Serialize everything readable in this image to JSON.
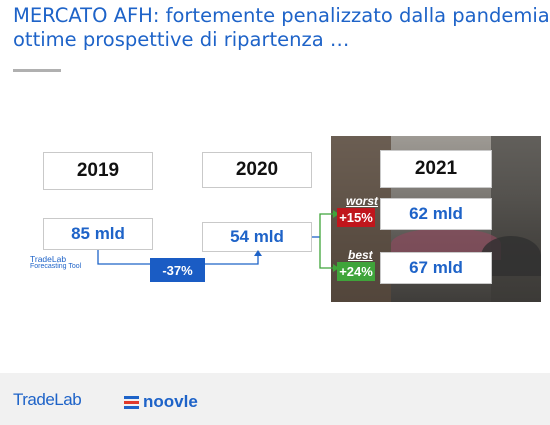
{
  "header": {
    "title_line1": "MERCATO AFH: fortemente penalizzato dalla pandemia",
    "title_line2": "ottime prospettive di ripartenza …"
  },
  "years": {
    "y2019": "2019",
    "y2020": "2020",
    "y2021": "2021"
  },
  "values": {
    "v2019": "85 mld",
    "v2020": "54 mld",
    "v2021_worst": "62 mld",
    "v2021_best": "67 mld"
  },
  "change": {
    "drop": "-37%",
    "worst_pct": "+15%",
    "best_pct": "+24%",
    "worst_label": "worst",
    "best_label": "best"
  },
  "source_logo": {
    "name": "TradeLab",
    "sub": "Forecasting Tool"
  },
  "footer": {
    "tradelab": "TradeLab",
    "noovle": "noovle"
  },
  "colors": {
    "accent": "#1e63c8",
    "drop": "#1a5cc4",
    "worst": "#c0161c",
    "best": "#3fa43a"
  }
}
